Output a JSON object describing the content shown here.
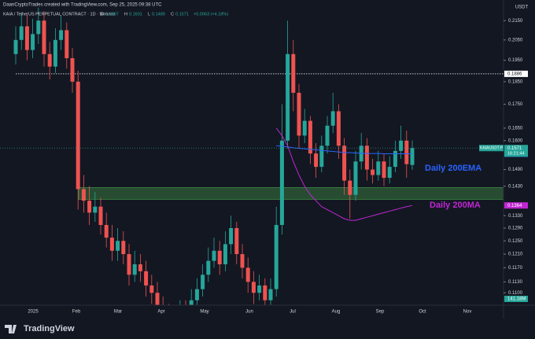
{
  "header": {
    "credit": "DaanCryptoTrades created with TradingView.com, Sep 25, 2025 09:38 UTC",
    "brand": "TradingView"
  },
  "chart_data": {
    "type": "candlestick",
    "symbol": "KAIA / TetherUS PERPETUAL CONTRACT · 1D · Binance",
    "currency": "USDT",
    "legend": {
      "o_label": "O",
      "o": 0.1507,
      "h_label": "H",
      "h": 0.1601,
      "l_label": "L",
      "l": 0.1489,
      "c_label": "C",
      "c": 0.1571,
      "change": "+0.0063 (+4.18%)"
    },
    "log_scale": true,
    "grid": false,
    "up_color": "#26a69a",
    "down_color": "#ef5350",
    "ylim": [
      0.1067,
      0.2262
    ],
    "yticks": [
      {
        "value": 0.215,
        "label": "0.2150"
      },
      {
        "value": 0.205,
        "label": "0.2050"
      },
      {
        "value": 0.195,
        "label": "0.1950"
      },
      {
        "value": 0.185,
        "label": "0.1850"
      },
      {
        "value": 0.175,
        "label": "0.1750"
      },
      {
        "value": 0.165,
        "label": "0.1650"
      },
      {
        "value": 0.16,
        "label": "0.1600"
      },
      {
        "value": 0.149,
        "label": "0.1490"
      },
      {
        "value": 0.143,
        "label": "0.1430"
      },
      {
        "value": 0.133,
        "label": "0.1330"
      },
      {
        "value": 0.129,
        "label": "0.1290"
      },
      {
        "value": 0.125,
        "label": "0.1250"
      },
      {
        "value": 0.121,
        "label": "0.1210"
      },
      {
        "value": 0.117,
        "label": "0.1170"
      },
      {
        "value": 0.113,
        "label": "0.1130"
      },
      {
        "value": 0.11,
        "label": "0.1100"
      }
    ],
    "x_labels": [
      "2025",
      "Feb",
      "Mar",
      "Apr",
      "May",
      "Jun",
      "Jul",
      "Aug",
      "Sep",
      "Oct",
      "Nov"
    ],
    "open": [
      0.198,
      0.205,
      0.212,
      0.2,
      0.208,
      0.215,
      0.198,
      0.192,
      0.205,
      0.21,
      0.196,
      0.185,
      0.142,
      0.138,
      0.134,
      0.136,
      0.13,
      0.126,
      0.122,
      0.125,
      0.121,
      0.115,
      0.118,
      0.116,
      0.112,
      0.11,
      0.106,
      0.104,
      0.1,
      0.103,
      0.105,
      0.104,
      0.108,
      0.111,
      0.115,
      0.119,
      0.122,
      0.118,
      0.124,
      0.129,
      0.121,
      0.117,
      0.113,
      0.11,
      0.112,
      0.108,
      0.111,
      0.13,
      0.16,
      0.198,
      0.18,
      0.162,
      0.168,
      0.155,
      0.15,
      0.158,
      0.166,
      0.172,
      0.158,
      0.145,
      0.14,
      0.152,
      0.158,
      0.149,
      0.147,
      0.152,
      0.146,
      0.15,
      0.156,
      0.16,
      0.1507
    ],
    "high": [
      0.212,
      0.219,
      0.218,
      0.216,
      0.222,
      0.22,
      0.204,
      0.211,
      0.218,
      0.214,
      0.201,
      0.19,
      0.147,
      0.143,
      0.141,
      0.139,
      0.134,
      0.13,
      0.129,
      0.128,
      0.124,
      0.122,
      0.121,
      0.119,
      0.115,
      0.113,
      0.109,
      0.107,
      0.106,
      0.108,
      0.108,
      0.111,
      0.114,
      0.118,
      0.123,
      0.126,
      0.125,
      0.128,
      0.133,
      0.131,
      0.124,
      0.12,
      0.116,
      0.115,
      0.114,
      0.114,
      0.136,
      0.175,
      0.215,
      0.205,
      0.184,
      0.173,
      0.17,
      0.159,
      0.162,
      0.17,
      0.18,
      0.175,
      0.161,
      0.149,
      0.156,
      0.163,
      0.161,
      0.153,
      0.156,
      0.155,
      0.154,
      0.16,
      0.166,
      0.164,
      0.1601
    ],
    "low": [
      0.193,
      0.2,
      0.195,
      0.196,
      0.203,
      0.192,
      0.186,
      0.189,
      0.2,
      0.191,
      0.18,
      0.135,
      0.134,
      0.13,
      0.131,
      0.127,
      0.123,
      0.119,
      0.119,
      0.118,
      0.112,
      0.113,
      0.113,
      0.109,
      0.107,
      0.103,
      0.101,
      0.097,
      0.098,
      0.101,
      0.101,
      0.102,
      0.106,
      0.109,
      0.113,
      0.117,
      0.115,
      0.116,
      0.121,
      0.118,
      0.114,
      0.11,
      0.107,
      0.108,
      0.105,
      0.106,
      0.109,
      0.127,
      0.157,
      0.172,
      0.157,
      0.159,
      0.151,
      0.146,
      0.148,
      0.155,
      0.163,
      0.153,
      0.14,
      0.132,
      0.138,
      0.149,
      0.145,
      0.144,
      0.145,
      0.143,
      0.144,
      0.148,
      0.153,
      0.146,
      0.1489
    ],
    "close": [
      0.205,
      0.212,
      0.2,
      0.208,
      0.215,
      0.198,
      0.192,
      0.205,
      0.21,
      0.196,
      0.185,
      0.142,
      0.138,
      0.134,
      0.136,
      0.13,
      0.126,
      0.122,
      0.125,
      0.121,
      0.115,
      0.118,
      0.116,
      0.112,
      0.11,
      0.106,
      0.104,
      0.1,
      0.103,
      0.105,
      0.104,
      0.108,
      0.111,
      0.115,
      0.119,
      0.122,
      0.118,
      0.124,
      0.129,
      0.121,
      0.117,
      0.113,
      0.11,
      0.112,
      0.108,
      0.111,
      0.13,
      0.16,
      0.198,
      0.18,
      0.162,
      0.168,
      0.155,
      0.15,
      0.158,
      0.166,
      0.172,
      0.158,
      0.145,
      0.14,
      0.152,
      0.158,
      0.149,
      0.147,
      0.152,
      0.146,
      0.15,
      0.156,
      0.16,
      0.151,
      0.1571
    ],
    "series": [
      {
        "name": "Daily 200EMA",
        "color": "#2962ff",
        "start": 46,
        "values": [
          0.158,
          0.1578,
          0.1575,
          0.1572,
          0.157,
          0.1568,
          0.1566,
          0.1564,
          0.1562,
          0.156,
          0.1558,
          0.1556,
          0.1554,
          0.1553,
          0.1552,
          0.1551,
          0.155,
          0.155,
          0.155,
          0.1549,
          0.1549,
          0.1549,
          0.1549,
          0.1549,
          0.1549
        ],
        "price_label": {
          "value": 0.1549,
          "label": "0.1549"
        }
      },
      {
        "name": "Daily 200MA",
        "color": "#c026d3",
        "start": 46,
        "values": [
          0.165,
          0.162,
          0.158,
          0.152,
          0.147,
          0.143,
          0.14,
          0.138,
          0.136,
          0.135,
          0.134,
          0.133,
          0.132,
          0.1315,
          0.1315,
          0.132,
          0.1325,
          0.133,
          0.1335,
          0.134,
          0.1345,
          0.135,
          0.1355,
          0.136,
          0.1364
        ],
        "price_label": {
          "value": 0.1364,
          "label": "0.1364"
        }
      }
    ],
    "zone": {
      "low": 0.1385,
      "high": 0.1425
    },
    "hline": {
      "value": 0.1886,
      "label": "0.1886"
    },
    "last_price": {
      "symbol": "KAIAUSDT.P",
      "value": 0.1571,
      "label": "0.1571",
      "countdown": "16:21:44"
    },
    "volume_label": "141.18M"
  }
}
